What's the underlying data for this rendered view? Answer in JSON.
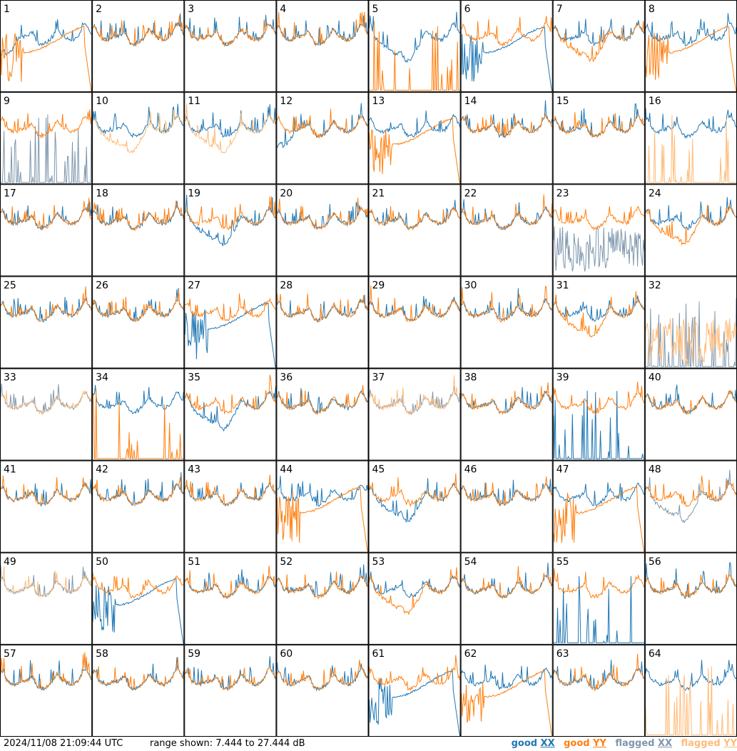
{
  "footer": {
    "timestamp": "2024/11/08 21:09:44 UTC",
    "range_text": "range shown: 7.444 to 27.444 dB",
    "legend": {
      "good": "good",
      "flagged": "flagged",
      "xx": "XX",
      "yy": "YY"
    }
  },
  "colors": {
    "good_xx": "#1f77b4",
    "good_yy": "#ff7f0e",
    "flagged_xx": "#7f97ad",
    "flagged_yy": "#ffbb78"
  },
  "chart_data": {
    "type": "line",
    "ylim": [
      7.444,
      27.444
    ],
    "yunit": "dB",
    "grid": false,
    "legend_placement": "bottom-right",
    "layout": {
      "rows": 8,
      "cols": 8
    },
    "panels": [
      {
        "id": "1",
        "xx": "good",
        "yy": "good",
        "xx_shape": "tilt",
        "yy_shape": "rolloff"
      },
      {
        "id": "2",
        "xx": "good",
        "yy": "good",
        "xx_shape": "normal",
        "yy_shape": "normal"
      },
      {
        "id": "3",
        "xx": "good",
        "yy": "good",
        "xx_shape": "normal",
        "yy_shape": "normal"
      },
      {
        "id": "4",
        "xx": "good",
        "yy": "good",
        "xx_shape": "normal",
        "yy_shape": "normal"
      },
      {
        "id": "5",
        "xx": "good",
        "yy": "good",
        "xx_shape": "dip",
        "yy_shape": "spikes"
      },
      {
        "id": "6",
        "xx": "good",
        "yy": "good",
        "xx_shape": "rolloff",
        "yy_shape": "normal"
      },
      {
        "id": "7",
        "xx": "good",
        "yy": "good",
        "xx_shape": "normal",
        "yy_shape": "dip"
      },
      {
        "id": "8",
        "xx": "good",
        "yy": "good",
        "xx_shape": "normal",
        "yy_shape": "rolloff"
      },
      {
        "id": "9",
        "xx": "flagged",
        "yy": "good",
        "xx_shape": "spikes",
        "yy_shape": "normal"
      },
      {
        "id": "10",
        "xx": "good",
        "yy": "flagged",
        "xx_shape": "normal",
        "yy_shape": "dip"
      },
      {
        "id": "11",
        "xx": "good",
        "yy": "flagged",
        "xx_shape": "normal",
        "yy_shape": "dip"
      },
      {
        "id": "12",
        "xx": "good",
        "yy": "good",
        "xx_shape": "tilt",
        "yy_shape": "normal"
      },
      {
        "id": "13",
        "xx": "good",
        "yy": "good",
        "xx_shape": "normal",
        "yy_shape": "rolloff"
      },
      {
        "id": "14",
        "xx": "good",
        "yy": "good",
        "xx_shape": "normal",
        "yy_shape": "normal"
      },
      {
        "id": "15",
        "xx": "good",
        "yy": "good",
        "xx_shape": "normal",
        "yy_shape": "normal"
      },
      {
        "id": "16",
        "xx": "good",
        "yy": "flagged",
        "xx_shape": "normal",
        "yy_shape": "spikes"
      },
      {
        "id": "17",
        "xx": "good",
        "yy": "good",
        "xx_shape": "normal",
        "yy_shape": "normal"
      },
      {
        "id": "18",
        "xx": "good",
        "yy": "good",
        "xx_shape": "normal",
        "yy_shape": "normal"
      },
      {
        "id": "19",
        "xx": "good",
        "yy": "good",
        "xx_shape": "dip",
        "yy_shape": "normal"
      },
      {
        "id": "20",
        "xx": "good",
        "yy": "good",
        "xx_shape": "normal",
        "yy_shape": "normal"
      },
      {
        "id": "21",
        "xx": "good",
        "yy": "good",
        "xx_shape": "normal",
        "yy_shape": "normal"
      },
      {
        "id": "22",
        "xx": "good",
        "yy": "good",
        "xx_shape": "normal",
        "yy_shape": "normal"
      },
      {
        "id": "23",
        "xx": "flagged",
        "yy": "good",
        "xx_shape": "noisy",
        "yy_shape": "normal"
      },
      {
        "id": "24",
        "xx": "good",
        "yy": "good",
        "xx_shape": "normal",
        "yy_shape": "dip"
      },
      {
        "id": "25",
        "xx": "good",
        "yy": "good",
        "xx_shape": "normal",
        "yy_shape": "normal"
      },
      {
        "id": "26",
        "xx": "good",
        "yy": "good",
        "xx_shape": "normal",
        "yy_shape": "normal"
      },
      {
        "id": "27",
        "xx": "good",
        "yy": "good",
        "xx_shape": "rolloff",
        "yy_shape": "normal"
      },
      {
        "id": "28",
        "xx": "good",
        "yy": "good",
        "xx_shape": "normal",
        "yy_shape": "normal"
      },
      {
        "id": "29",
        "xx": "good",
        "yy": "good",
        "xx_shape": "normal",
        "yy_shape": "normal"
      },
      {
        "id": "30",
        "xx": "good",
        "yy": "good",
        "xx_shape": "normal",
        "yy_shape": "normal"
      },
      {
        "id": "31",
        "xx": "good",
        "yy": "good",
        "xx_shape": "normal",
        "yy_shape": "dip"
      },
      {
        "id": "32",
        "xx": "flagged",
        "yy": "flagged",
        "xx_shape": "spikes",
        "yy_shape": "noisy"
      },
      {
        "id": "33",
        "xx": "flagged",
        "yy": "flagged",
        "xx_shape": "normal",
        "yy_shape": "normal"
      },
      {
        "id": "34",
        "xx": "good",
        "yy": "good",
        "xx_shape": "normal",
        "yy_shape": "spikes"
      },
      {
        "id": "35",
        "xx": "good",
        "yy": "good",
        "xx_shape": "dip",
        "yy_shape": "normal"
      },
      {
        "id": "36",
        "xx": "good",
        "yy": "good",
        "xx_shape": "normal",
        "yy_shape": "normal"
      },
      {
        "id": "37",
        "xx": "flagged",
        "yy": "flagged",
        "xx_shape": "normal",
        "yy_shape": "normal"
      },
      {
        "id": "38",
        "xx": "good",
        "yy": "good",
        "xx_shape": "normal",
        "yy_shape": "normal"
      },
      {
        "id": "39",
        "xx": "good",
        "yy": "good",
        "xx_shape": "spikes",
        "yy_shape": "normal"
      },
      {
        "id": "40",
        "xx": "good",
        "yy": "good",
        "xx_shape": "normal",
        "yy_shape": "normal"
      },
      {
        "id": "41",
        "xx": "good",
        "yy": "good",
        "xx_shape": "normal",
        "yy_shape": "normal"
      },
      {
        "id": "42",
        "xx": "good",
        "yy": "good",
        "xx_shape": "normal",
        "yy_shape": "normal"
      },
      {
        "id": "43",
        "xx": "good",
        "yy": "good",
        "xx_shape": "normal",
        "yy_shape": "normal"
      },
      {
        "id": "44",
        "xx": "good",
        "yy": "good",
        "xx_shape": "normal",
        "yy_shape": "rolloff"
      },
      {
        "id": "45",
        "xx": "good",
        "yy": "good",
        "xx_shape": "dip",
        "yy_shape": "normal"
      },
      {
        "id": "46",
        "xx": "good",
        "yy": "good",
        "xx_shape": "normal",
        "yy_shape": "normal"
      },
      {
        "id": "47",
        "xx": "good",
        "yy": "good",
        "xx_shape": "normal",
        "yy_shape": "rolloff"
      },
      {
        "id": "48",
        "xx": "flagged",
        "yy": "good",
        "xx_shape": "dip",
        "yy_shape": "normal"
      },
      {
        "id": "49",
        "xx": "flagged",
        "yy": "flagged",
        "xx_shape": "normal",
        "yy_shape": "normal"
      },
      {
        "id": "50",
        "xx": "good",
        "yy": "good",
        "xx_shape": "rolloff",
        "yy_shape": "normal"
      },
      {
        "id": "51",
        "xx": "good",
        "yy": "good",
        "xx_shape": "normal",
        "yy_shape": "normal"
      },
      {
        "id": "52",
        "xx": "good",
        "yy": "good",
        "xx_shape": "normal",
        "yy_shape": "normal"
      },
      {
        "id": "53",
        "xx": "good",
        "yy": "good",
        "xx_shape": "normal",
        "yy_shape": "dip"
      },
      {
        "id": "54",
        "xx": "good",
        "yy": "good",
        "xx_shape": "normal",
        "yy_shape": "normal"
      },
      {
        "id": "55",
        "xx": "good",
        "yy": "good",
        "xx_shape": "spikes",
        "yy_shape": "normal"
      },
      {
        "id": "56",
        "xx": "good",
        "yy": "good",
        "xx_shape": "normal",
        "yy_shape": "normal"
      },
      {
        "id": "57",
        "xx": "good",
        "yy": "good",
        "xx_shape": "normal",
        "yy_shape": "normal"
      },
      {
        "id": "58",
        "xx": "good",
        "yy": "good",
        "xx_shape": "normal",
        "yy_shape": "normal"
      },
      {
        "id": "59",
        "xx": "good",
        "yy": "good",
        "xx_shape": "normal",
        "yy_shape": "normal"
      },
      {
        "id": "60",
        "xx": "good",
        "yy": "good",
        "xx_shape": "normal",
        "yy_shape": "normal"
      },
      {
        "id": "61",
        "xx": "good",
        "yy": "good",
        "xx_shape": "rolloff",
        "yy_shape": "normal"
      },
      {
        "id": "62",
        "xx": "good",
        "yy": "good",
        "xx_shape": "normal",
        "yy_shape": "rolloff"
      },
      {
        "id": "63",
        "xx": "good",
        "yy": "good",
        "xx_shape": "normal",
        "yy_shape": "normal"
      },
      {
        "id": "64",
        "xx": "good",
        "yy": "flagged",
        "xx_shape": "normal",
        "yy_shape": "spikes"
      }
    ]
  }
}
